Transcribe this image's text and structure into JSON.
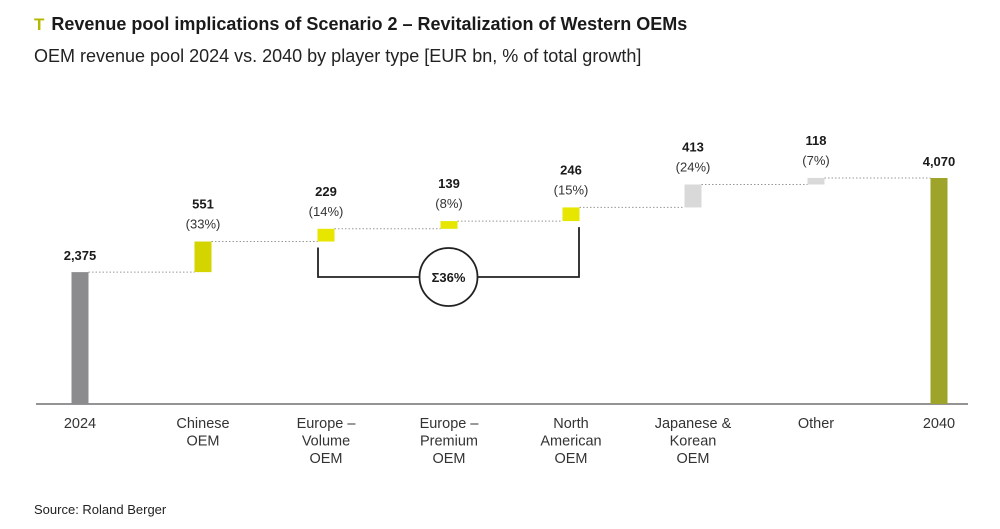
{
  "header": {
    "marker": "T",
    "title": "Revenue pool implications of Scenario 2 – Revitalization of Western OEMs",
    "subtitle": "OEM revenue pool 2024 vs. 2040 by player type [EUR bn, % of total growth]"
  },
  "footer": {
    "source": "Source: Roland Berger"
  },
  "chart_data": {
    "type": "bar",
    "subtype": "waterfall",
    "categories": [
      [
        "2024"
      ],
      [
        "Chinese",
        "OEM"
      ],
      [
        "Europe –",
        "Volume",
        "OEM"
      ],
      [
        "Europe –",
        "Premium",
        "OEM"
      ],
      [
        "North",
        "American",
        "OEM"
      ],
      [
        "Japanese &",
        "Korean",
        "OEM"
      ],
      [
        "Other"
      ],
      [
        "2040"
      ]
    ],
    "values": [
      2375,
      551,
      229,
      139,
      246,
      413,
      118,
      4070
    ],
    "value_labels": [
      "2,375",
      "551",
      "229",
      "139",
      "246",
      "413",
      "118",
      "4,070"
    ],
    "share_labels": [
      "",
      "(33%)",
      "(14%)",
      "(8%)",
      "(15%)",
      "(24%)",
      "(7%)",
      ""
    ],
    "bar_kinds": [
      "total",
      "delta",
      "delta",
      "delta",
      "delta",
      "delta",
      "delta",
      "total"
    ],
    "colors": {
      "start_total": "#8c8c8e",
      "end_total": "#9ea32a",
      "highlight": "#e6e600",
      "chinese": "#d4d400",
      "muted": "#d9d9d9",
      "connector": "#999999",
      "axis": "#555555"
    },
    "bar_colors": [
      "start_total",
      "chinese",
      "highlight",
      "highlight",
      "highlight",
      "muted",
      "muted",
      "end_total"
    ],
    "bracket": {
      "from_index": 2,
      "to_index": 4,
      "label": "Σ36%"
    },
    "ylim": [
      0,
      4070
    ]
  }
}
